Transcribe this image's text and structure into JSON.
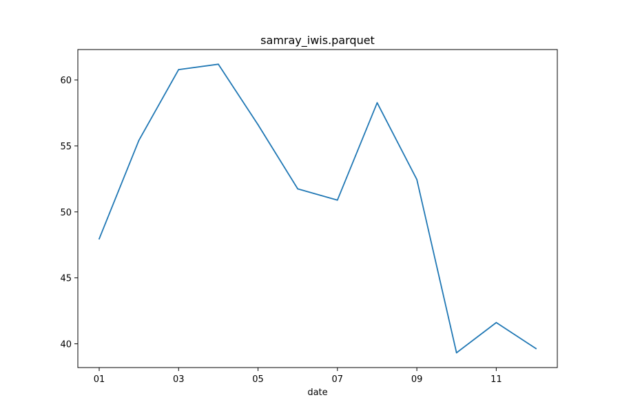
{
  "chart_data": {
    "type": "line",
    "title": "samray_iwis.parquet",
    "xlabel": "date",
    "ylabel": "",
    "x": [
      "01",
      "02",
      "03",
      "04",
      "05",
      "06",
      "07",
      "08",
      "09",
      "10",
      "11",
      "12"
    ],
    "x_ticks": [
      "01",
      "03",
      "05",
      "07",
      "09",
      "11"
    ],
    "y_ticks": [
      40,
      45,
      50,
      55,
      60
    ],
    "ylim": [
      38.2,
      62.3
    ],
    "grid": false,
    "series": [
      {
        "name": "",
        "color": "#1f77b4",
        "values": [
          47.96,
          55.42,
          60.78,
          61.19,
          56.61,
          51.74,
          50.89,
          58.27,
          52.45,
          39.32,
          41.61,
          39.64
        ]
      }
    ]
  }
}
